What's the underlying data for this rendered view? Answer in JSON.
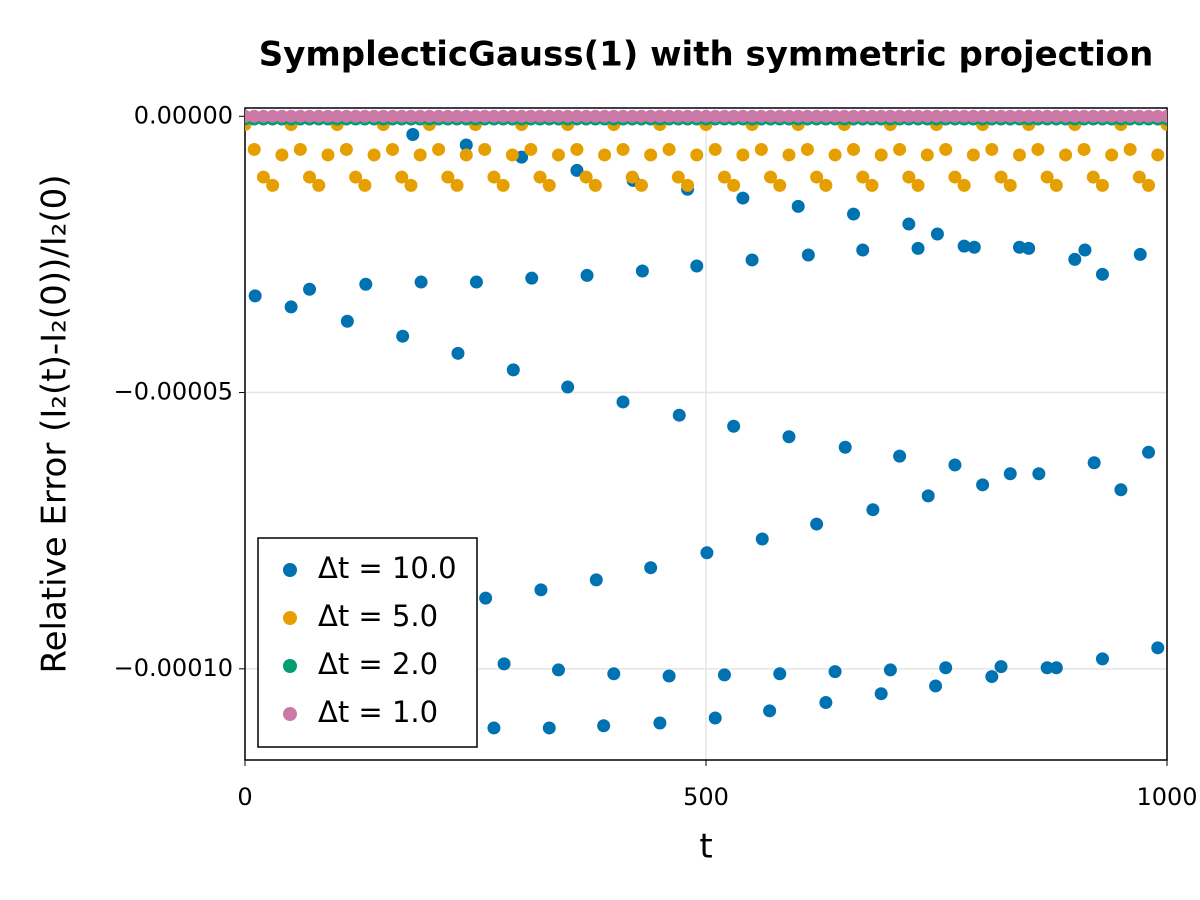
{
  "chart_data": {
    "type": "scatter",
    "title": "SymplecticGauss(1) with symmetric projection",
    "xlabel": "t",
    "ylabel": "Relative Error (I₂(t)-I₂(0))/I₂(0)",
    "xlim": [
      0,
      1000
    ],
    "ylim": [
      -0.0001165,
      1.5e-06
    ],
    "xticks": [
      0,
      500,
      1000
    ],
    "yticks": [
      {
        "value": 0,
        "label": "0.00000"
      },
      {
        "value": -5e-05,
        "label": "−0.00005"
      },
      {
        "value": -0.0001,
        "label": "−0.00010"
      }
    ],
    "grid": true,
    "legend": "lower left",
    "series": [
      {
        "name": "Δt = 10.0",
        "color": "#0072b2",
        "x": [
          182,
          240,
          300,
          360,
          421,
          480,
          540,
          600,
          660,
          720,
          751,
          780,
          840,
          900,
          930,
          11,
          70,
          131,
          191,
          251,
          311,
          371,
          431,
          490,
          550,
          611,
          670,
          730,
          791,
          850,
          911,
          971,
          50,
          111,
          171,
          231,
          291,
          350,
          410,
          471,
          530,
          590,
          651,
          710,
          770,
          830,
          861,
          921,
          950,
          980,
          261,
          321,
          381,
          440,
          501,
          561,
          620,
          681,
          741,
          800,
          281,
          340,
          400,
          460,
          520,
          580,
          640,
          700,
          760,
          820,
          880,
          930,
          990,
          270,
          330,
          389,
          450,
          510,
          569,
          630,
          690,
          749,
          810,
          870
        ],
        "values": [
          -3.3e-06,
          -5.2e-06,
          -7.4e-06,
          -9.8e-06,
          -1.16e-05,
          -1.32e-05,
          -1.48e-05,
          -1.63e-05,
          -1.77e-05,
          -1.95e-05,
          -2.13e-05,
          -2.35e-05,
          -2.37e-05,
          -2.59e-05,
          -2.86e-05,
          -3.25e-05,
          -3.13e-05,
          -3.04e-05,
          -3e-05,
          -3e-05,
          -2.93e-05,
          -2.88e-05,
          -2.8e-05,
          -2.71e-05,
          -2.6e-05,
          -2.51e-05,
          -2.42e-05,
          -2.39e-05,
          -2.37e-05,
          -2.39e-05,
          -2.42e-05,
          -2.5e-05,
          -3.45e-05,
          -3.71e-05,
          -3.98e-05,
          -4.29e-05,
          -4.59e-05,
          -4.9e-05,
          -5.17e-05,
          -5.41e-05,
          -5.61e-05,
          -5.8e-05,
          -5.99e-05,
          -6.15e-05,
          -6.31e-05,
          -6.47e-05,
          -6.47e-05,
          -6.27e-05,
          -6.76e-05,
          -6.08e-05,
          -8.72e-05,
          -8.57e-05,
          -8.39e-05,
          -8.17e-05,
          -7.9e-05,
          -7.65e-05,
          -7.38e-05,
          -7.12e-05,
          -6.87e-05,
          -6.67e-05,
          -9.91e-05,
          -0.0001002,
          -0.0001009,
          -0.0001013,
          -0.0001011,
          -0.0001009,
          -0.0001005,
          -0.0001002,
          -9.98e-05,
          -9.96e-05,
          -9.98e-05,
          -9.82e-05,
          -9.62e-05,
          -0.0001107,
          -0.0001107,
          -0.0001103,
          -0.0001098,
          -0.0001089,
          -0.0001076,
          -0.0001061,
          -0.0001045,
          -0.0001031,
          -0.0001014,
          -9.98e-05
        ]
      },
      {
        "name": "Δt = 5.0",
        "color": "#e69f00",
        "x": [
          0,
          10,
          20,
          30,
          40,
          50,
          60,
          70,
          80,
          90,
          100,
          110,
          120,
          130,
          140,
          150,
          160,
          170,
          180,
          190,
          200,
          210,
          220,
          230,
          240,
          250,
          260,
          270,
          280,
          290,
          300,
          310,
          320,
          330,
          340,
          350,
          360,
          370,
          380,
          390,
          400,
          410,
          420,
          430,
          440,
          450,
          460,
          470,
          480,
          490,
          500,
          510,
          520,
          530,
          540,
          550,
          560,
          570,
          580,
          590,
          600,
          610,
          620,
          630,
          640,
          650,
          660,
          670,
          680,
          690,
          700,
          710,
          720,
          730,
          740,
          750,
          760,
          770,
          780,
          790,
          800,
          810,
          820,
          830,
          840,
          850,
          860,
          870,
          880,
          890,
          900,
          910,
          920,
          930,
          940,
          950,
          960,
          970,
          980,
          990,
          1000
        ],
        "values": [
          -1.5e-06,
          -6e-06,
          -1.1e-05,
          -1.25e-05,
          -7e-06,
          -1.5e-06,
          -6e-06,
          -1.1e-05,
          -1.25e-05,
          -7e-06,
          -1.5e-06,
          -6e-06,
          -1.1e-05,
          -1.25e-05,
          -7e-06,
          -1.5e-06,
          -6e-06,
          -1.1e-05,
          -1.25e-05,
          -7e-06,
          -1.5e-06,
          -6e-06,
          -1.1e-05,
          -1.25e-05,
          -7e-06,
          -1.5e-06,
          -6e-06,
          -1.1e-05,
          -1.25e-05,
          -7e-06,
          -1.5e-06,
          -6e-06,
          -1.1e-05,
          -1.25e-05,
          -7e-06,
          -1.5e-06,
          -6e-06,
          -1.1e-05,
          -1.25e-05,
          -7e-06,
          -1.5e-06,
          -6e-06,
          -1.1e-05,
          -1.25e-05,
          -7e-06,
          -1.5e-06,
          -6e-06,
          -1.1e-05,
          -1.25e-05,
          -7e-06,
          -1.5e-06,
          -6e-06,
          -1.1e-05,
          -1.25e-05,
          -7e-06,
          -1.5e-06,
          -6e-06,
          -1.1e-05,
          -1.25e-05,
          -7e-06,
          -1.5e-06,
          -6e-06,
          -1.1e-05,
          -1.25e-05,
          -7e-06,
          -1.5e-06,
          -6e-06,
          -1.1e-05,
          -1.25e-05,
          -7e-06,
          -1.5e-06,
          -6e-06,
          -1.1e-05,
          -1.25e-05,
          -7e-06,
          -1.5e-06,
          -6e-06,
          -1.1e-05,
          -1.25e-05,
          -7e-06,
          -1.5e-06,
          -6e-06,
          -1.1e-05,
          -1.25e-05,
          -7e-06,
          -1.5e-06,
          -6e-06,
          -1.1e-05,
          -1.25e-05,
          -7e-06,
          -1.5e-06,
          -6e-06,
          -1.1e-05,
          -1.25e-05,
          -7e-06,
          -1.5e-06,
          -6e-06,
          -1.1e-05,
          -1.25e-05,
          -7e-06,
          -1.5e-06
        ]
      },
      {
        "name": "Δt = 2.0",
        "color": "#009e73",
        "x": [
          0,
          10,
          20,
          30,
          40,
          50,
          60,
          70,
          80,
          90,
          100,
          110,
          120,
          130,
          140,
          150,
          160,
          170,
          180,
          190,
          200,
          210,
          220,
          230,
          240,
          250,
          260,
          270,
          280,
          290,
          300,
          310,
          320,
          330,
          340,
          350,
          360,
          370,
          380,
          390,
          400,
          410,
          420,
          430,
          440,
          450,
          460,
          470,
          480,
          490,
          500,
          510,
          520,
          530,
          540,
          550,
          560,
          570,
          580,
          590,
          600,
          610,
          620,
          630,
          640,
          650,
          660,
          670,
          680,
          690,
          700,
          710,
          720,
          730,
          740,
          750,
          760,
          770,
          780,
          790,
          800,
          810,
          820,
          830,
          840,
          850,
          860,
          870,
          880,
          890,
          900,
          910,
          920,
          930,
          940,
          950,
          960,
          970,
          980,
          990,
          1000
        ],
        "values": [
          -5e-07,
          -5e-07,
          -5e-07,
          -5e-07,
          -5e-07,
          -5e-07,
          -5e-07,
          -5e-07,
          -5e-07,
          -5e-07,
          -5e-07,
          -5e-07,
          -5e-07,
          -5e-07,
          -5e-07,
          -5e-07,
          -5e-07,
          -5e-07,
          -5e-07,
          -5e-07,
          -5e-07,
          -5e-07,
          -5e-07,
          -5e-07,
          -5e-07,
          -5e-07,
          -5e-07,
          -5e-07,
          -5e-07,
          -5e-07,
          -5e-07,
          -5e-07,
          -5e-07,
          -5e-07,
          -5e-07,
          -5e-07,
          -5e-07,
          -5e-07,
          -5e-07,
          -5e-07,
          -5e-07,
          -5e-07,
          -5e-07,
          -5e-07,
          -5e-07,
          -5e-07,
          -5e-07,
          -5e-07,
          -5e-07,
          -5e-07,
          -5e-07,
          -5e-07,
          -5e-07,
          -5e-07,
          -5e-07,
          -5e-07,
          -5e-07,
          -5e-07,
          -5e-07,
          -5e-07,
          -5e-07,
          -5e-07,
          -5e-07,
          -5e-07,
          -5e-07,
          -5e-07,
          -5e-07,
          -5e-07,
          -5e-07,
          -5e-07,
          -5e-07,
          -5e-07,
          -5e-07,
          -5e-07,
          -5e-07,
          -5e-07,
          -5e-07,
          -5e-07,
          -5e-07,
          -5e-07,
          -5e-07,
          -5e-07,
          -5e-07,
          -5e-07,
          -5e-07,
          -5e-07,
          -5e-07,
          -5e-07,
          -5e-07,
          -5e-07,
          -5e-07,
          -5e-07,
          -5e-07,
          -5e-07,
          -5e-07,
          -5e-07,
          -5e-07,
          -5e-07,
          -5e-07,
          -5e-07,
          -5e-07
        ]
      },
      {
        "name": "Δt = 1.0",
        "color": "#cc79a7",
        "x": [
          0,
          10,
          20,
          30,
          40,
          50,
          60,
          70,
          80,
          90,
          100,
          110,
          120,
          130,
          140,
          150,
          160,
          170,
          180,
          190,
          200,
          210,
          220,
          230,
          240,
          250,
          260,
          270,
          280,
          290,
          300,
          310,
          320,
          330,
          340,
          350,
          360,
          370,
          380,
          390,
          400,
          410,
          420,
          430,
          440,
          450,
          460,
          470,
          480,
          490,
          500,
          510,
          520,
          530,
          540,
          550,
          560,
          570,
          580,
          590,
          600,
          610,
          620,
          630,
          640,
          650,
          660,
          670,
          680,
          690,
          700,
          710,
          720,
          730,
          740,
          750,
          760,
          770,
          780,
          790,
          800,
          810,
          820,
          830,
          840,
          850,
          860,
          870,
          880,
          890,
          900,
          910,
          920,
          930,
          940,
          950,
          960,
          970,
          980,
          990,
          1000
        ],
        "values": [
          0,
          0,
          0,
          0,
          0,
          0,
          0,
          0,
          0,
          0,
          0,
          0,
          0,
          0,
          0,
          0,
          0,
          0,
          0,
          0,
          0,
          0,
          0,
          0,
          0,
          0,
          0,
          0,
          0,
          0,
          0,
          0,
          0,
          0,
          0,
          0,
          0,
          0,
          0,
          0,
          0,
          0,
          0,
          0,
          0,
          0,
          0,
          0,
          0,
          0,
          0,
          0,
          0,
          0,
          0,
          0,
          0,
          0,
          0,
          0,
          0,
          0,
          0,
          0,
          0,
          0,
          0,
          0,
          0,
          0,
          0,
          0,
          0,
          0,
          0,
          0,
          0,
          0,
          0,
          0,
          0,
          0,
          0,
          0,
          0,
          0,
          0,
          0,
          0,
          0,
          0,
          0,
          0,
          0,
          0,
          0,
          0,
          0,
          0,
          0,
          0
        ]
      }
    ]
  }
}
